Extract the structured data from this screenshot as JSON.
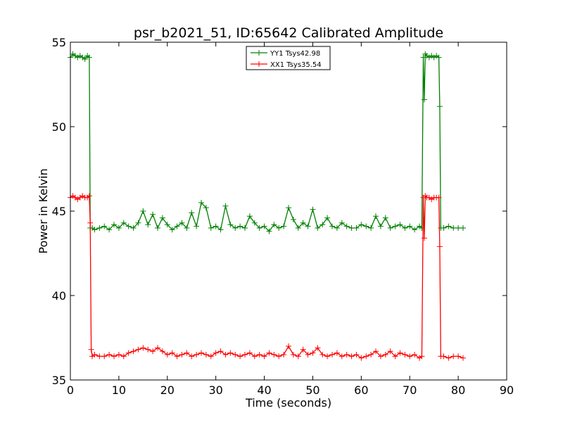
{
  "chart_data": {
    "type": "line",
    "title": "psr_b2021_51, ID:65642 Calibrated Amplitude",
    "xlabel": "Time (seconds)",
    "ylabel": "Power in Kelvin",
    "xlim": [
      0,
      90
    ],
    "ylim": [
      35,
      55
    ],
    "xticks": [
      0,
      10,
      20,
      30,
      40,
      50,
      60,
      70,
      80,
      90
    ],
    "yticks": [
      35,
      40,
      45,
      50,
      55
    ],
    "grid": false,
    "legend_position": "top-center",
    "series": [
      {
        "name": "YY1 Tsys42.98",
        "color": "#008000",
        "marker": "+",
        "x": [
          0,
          0.5,
          1,
          1.5,
          2,
          2.5,
          3,
          3.5,
          3.9,
          4.1,
          4.5,
          5,
          6,
          7,
          8,
          9,
          10,
          11,
          12,
          13,
          14,
          15,
          16,
          17,
          18,
          19,
          20,
          21,
          22,
          23,
          24,
          25,
          26,
          27,
          28,
          29,
          30,
          31,
          32,
          33,
          34,
          35,
          36,
          37,
          38,
          39,
          40,
          41,
          42,
          43,
          44,
          45,
          46,
          47,
          48,
          49,
          50,
          51,
          52,
          53,
          54,
          55,
          56,
          57,
          58,
          59,
          60,
          61,
          62,
          63,
          64,
          65,
          66,
          67,
          68,
          69,
          70,
          71,
          72,
          72.5,
          72.8,
          73,
          73.2,
          73.5,
          74,
          74.5,
          75,
          75.5,
          76,
          76.2,
          76.4,
          77,
          78,
          79,
          80,
          81
        ],
        "y": [
          54.1,
          54.3,
          54.2,
          54.1,
          54.2,
          54.1,
          54.0,
          54.2,
          54.1,
          44.0,
          44.0,
          43.9,
          44.0,
          44.1,
          43.9,
          44.2,
          44.0,
          44.3,
          44.1,
          44.0,
          44.3,
          45.0,
          44.2,
          44.8,
          44.0,
          44.6,
          44.2,
          43.9,
          44.1,
          44.3,
          44.0,
          44.9,
          44.1,
          45.5,
          45.2,
          44.0,
          44.1,
          43.9,
          45.3,
          44.2,
          44.0,
          44.1,
          44.0,
          44.7,
          44.3,
          44.0,
          44.1,
          43.8,
          44.2,
          44.0,
          44.1,
          45.2,
          44.5,
          44.0,
          44.3,
          44.1,
          45.1,
          44.0,
          44.2,
          44.6,
          44.1,
          44.0,
          44.3,
          44.1,
          44.0,
          44.0,
          44.2,
          44.1,
          44.0,
          44.7,
          44.1,
          44.6,
          44.0,
          44.1,
          44.2,
          44.0,
          44.1,
          43.9,
          44.1,
          44.0,
          54.1,
          51.6,
          54.3,
          54.2,
          54.1,
          54.2,
          54.1,
          54.2,
          54.1,
          51.2,
          44.0,
          44.0,
          44.1,
          44.0,
          44.0,
          44.0
        ]
      },
      {
        "name": "XX1 Tsys35.54",
        "color": "#ff0000",
        "marker": "+",
        "x": [
          0,
          0.5,
          1,
          1.5,
          2,
          2.5,
          3,
          3.5,
          3.9,
          4.1,
          4.3,
          4.5,
          5,
          6,
          7,
          8,
          9,
          10,
          11,
          12,
          13,
          14,
          15,
          16,
          17,
          18,
          19,
          20,
          21,
          22,
          23,
          24,
          25,
          26,
          27,
          28,
          29,
          30,
          31,
          32,
          33,
          34,
          35,
          36,
          37,
          38,
          39,
          40,
          41,
          42,
          43,
          44,
          45,
          46,
          47,
          48,
          49,
          50,
          51,
          52,
          53,
          54,
          55,
          56,
          57,
          58,
          59,
          60,
          61,
          62,
          63,
          64,
          65,
          66,
          67,
          68,
          69,
          70,
          71,
          72,
          72.5,
          72.8,
          73,
          73.2,
          73.5,
          74,
          74.5,
          75,
          75.5,
          76,
          76.2,
          76.4,
          77,
          78,
          79,
          80,
          81
        ],
        "y": [
          45.8,
          45.9,
          45.8,
          45.7,
          45.8,
          45.9,
          45.8,
          45.8,
          45.9,
          44.3,
          36.8,
          36.4,
          36.5,
          36.4,
          36.4,
          36.5,
          36.4,
          36.5,
          36.4,
          36.6,
          36.7,
          36.8,
          36.9,
          36.8,
          36.7,
          36.9,
          36.7,
          36.5,
          36.6,
          36.4,
          36.5,
          36.6,
          36.4,
          36.5,
          36.6,
          36.5,
          36.4,
          36.6,
          36.7,
          36.5,
          36.6,
          36.5,
          36.4,
          36.5,
          36.6,
          36.4,
          36.5,
          36.4,
          36.6,
          36.5,
          36.4,
          36.5,
          37.0,
          36.5,
          36.4,
          36.8,
          36.5,
          36.6,
          36.9,
          36.5,
          36.4,
          36.5,
          36.6,
          36.4,
          36.5,
          36.4,
          36.5,
          36.3,
          36.4,
          36.5,
          36.7,
          36.4,
          36.5,
          36.7,
          36.4,
          36.6,
          36.5,
          36.4,
          36.5,
          36.3,
          36.4,
          45.8,
          43.4,
          45.9,
          45.8,
          45.8,
          45.7,
          45.8,
          45.8,
          45.8,
          42.9,
          36.4,
          36.4,
          36.3,
          36.4,
          36.4,
          36.3
        ]
      }
    ]
  }
}
